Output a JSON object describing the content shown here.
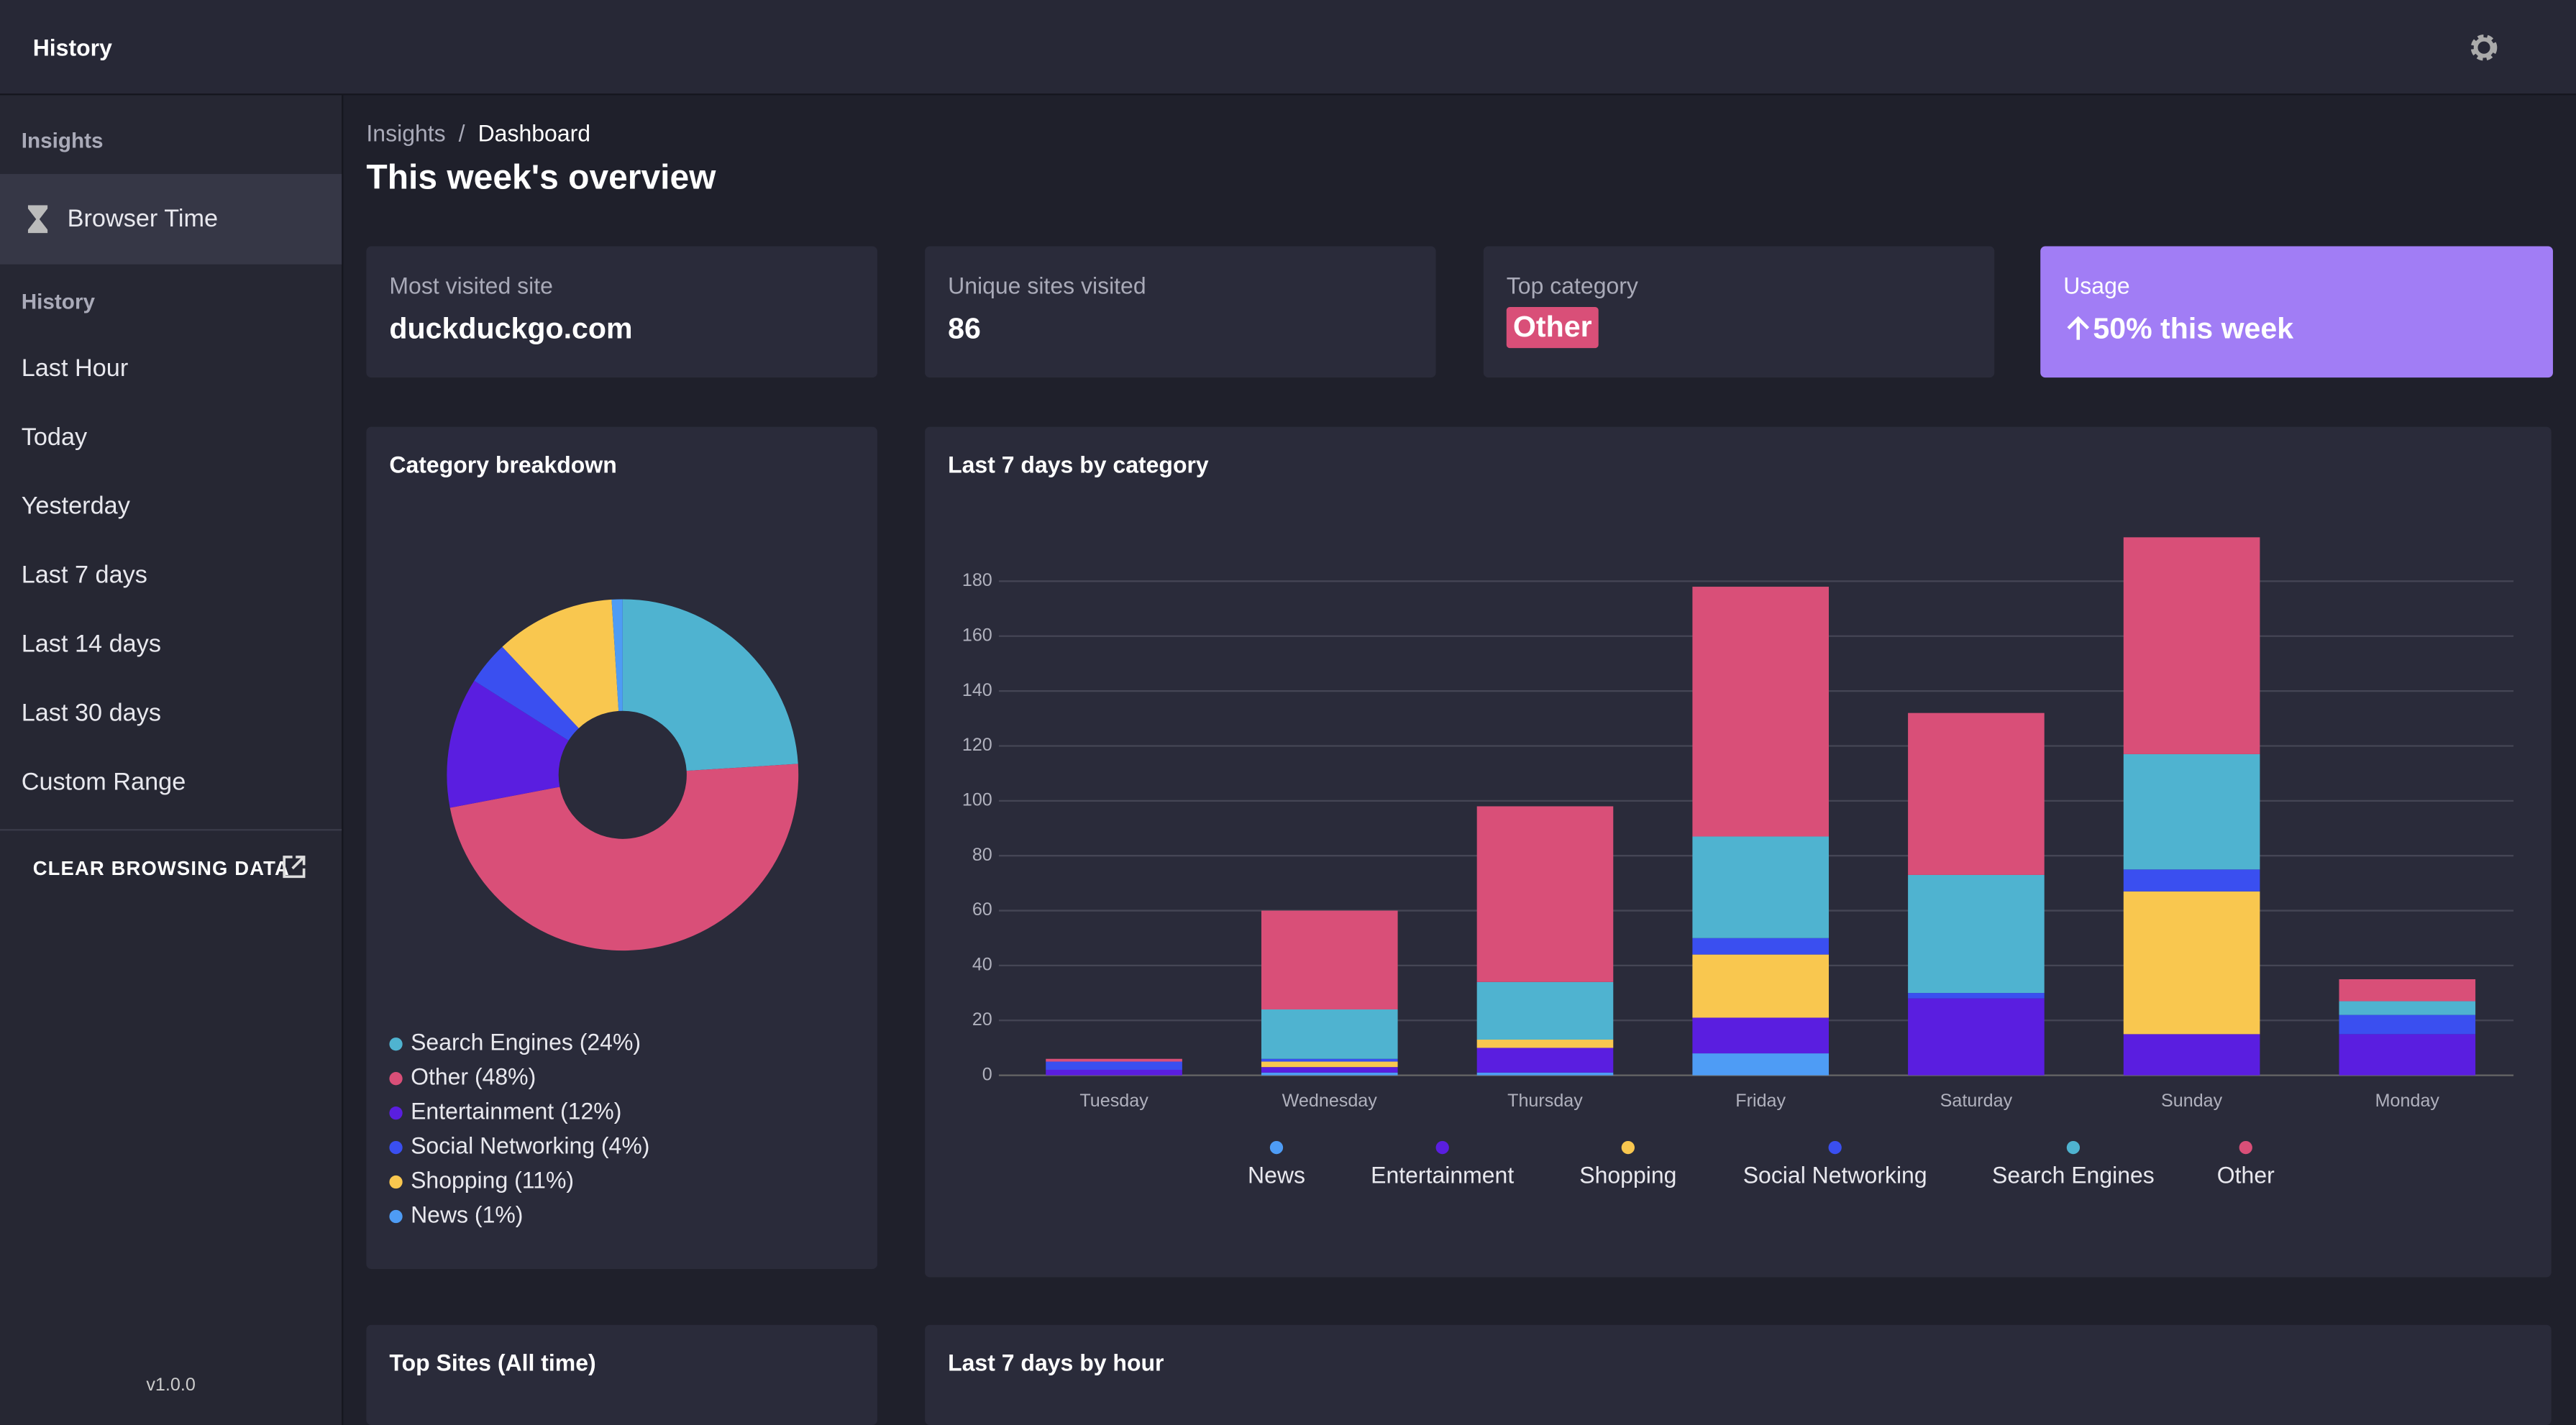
{
  "header": {
    "title": "History"
  },
  "sidebar": {
    "sections": [
      {
        "title": "Insights",
        "items": [
          "Browser Time"
        ]
      },
      {
        "title": "History",
        "items": [
          "Last Hour",
          "Today",
          "Yesterday",
          "Last 7 days",
          "Last 14 days",
          "Last 30 days",
          "Custom Range"
        ]
      }
    ],
    "action": "CLEAR BROWSING DATA",
    "version": "v1.0.0"
  },
  "breadcrumbs": [
    "Insights",
    "/",
    "Dashboard"
  ],
  "page_title": "This week's overview",
  "stats": [
    {
      "label": "Most visited site",
      "value": "duckduckgo.com"
    },
    {
      "label": "Unique sites visited",
      "value": 86
    },
    {
      "label": "Top category",
      "value": "Other"
    },
    {
      "label": "Usage",
      "value": "50% this week"
    }
  ],
  "cards": [
    "Top Sites (All time)",
    "Last 7 days by hour"
  ],
  "chart_data": [
    {
      "type": "pie",
      "title": "Category breakdown",
      "categories": [
        "Search Engines (24%)",
        "Other (48%)",
        "Entertainment (12%)",
        "Social Networking (4%)",
        "Shopping (11%)",
        "News (1%)"
      ],
      "values": [
        24,
        48,
        12,
        4,
        11,
        1
      ],
      "colors": [
        "#4fb3d0",
        "#d94f78",
        "#5a1ee0",
        "#3a4ff0",
        "#f9c74f",
        "#4e9cf5"
      ]
    },
    {
      "type": "bar",
      "stacked": true,
      "title": "Last 7 days by category",
      "categories": [
        "Tuesday",
        "Wednesday",
        "Thursday",
        "Friday",
        "Saturday",
        "Sunday",
        "Monday"
      ],
      "series": [
        {
          "name": "News",
          "color": "#4e9cf5",
          "values": [
            0,
            1,
            1,
            8,
            0,
            0,
            0
          ]
        },
        {
          "name": "Entertainment",
          "color": "#5a1ee0",
          "values": [
            2,
            2,
            9,
            13,
            28,
            15,
            15
          ]
        },
        {
          "name": "Shopping",
          "color": "#f9c74f",
          "values": [
            0,
            2,
            3,
            23,
            0,
            52,
            0
          ]
        },
        {
          "name": "Social Networking",
          "color": "#3a4ff0",
          "values": [
            3,
            1,
            0,
            6,
            2,
            8,
            7
          ]
        },
        {
          "name": "Search Engines",
          "color": "#4fb3d0",
          "values": [
            0,
            18,
            21,
            37,
            43,
            42,
            5
          ]
        },
        {
          "name": "Other",
          "color": "#d94f78",
          "values": [
            1,
            36,
            64,
            91,
            59,
            79,
            8
          ]
        }
      ],
      "ylim": [
        0,
        200
      ],
      "yticks": [
        0,
        20,
        40,
        60,
        80,
        100,
        120,
        140,
        160,
        180
      ],
      "grid": true,
      "legend": "bottom"
    }
  ]
}
